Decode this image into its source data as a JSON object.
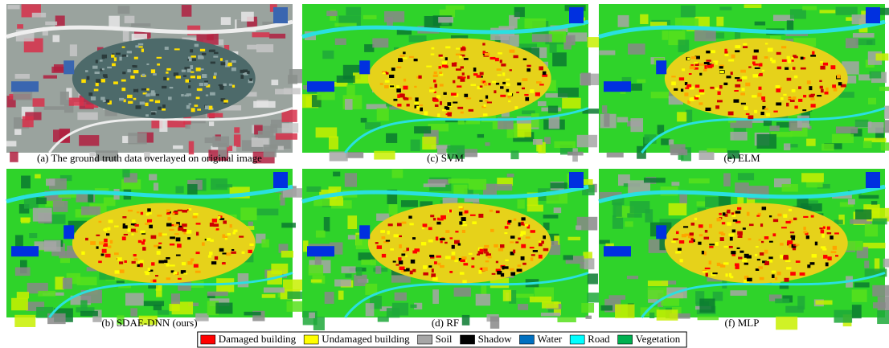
{
  "panels": [
    {
      "caption": "(a) The ground truth data overlayed on original image",
      "kind": "original"
    },
    {
      "caption": "(c) SVM",
      "kind": "map"
    },
    {
      "caption": "(e) ELM",
      "kind": "map"
    },
    {
      "caption": "(b) SDAE-DNN (ours)",
      "kind": "map"
    },
    {
      "caption": "(d) RF",
      "kind": "map"
    },
    {
      "caption": "(f) MLP",
      "kind": "map"
    }
  ],
  "legend": [
    {
      "label": "Damaged building",
      "color": "#ff0000"
    },
    {
      "label": "Undamaged building",
      "color": "#ffff00"
    },
    {
      "label": "Soil",
      "color": "#a6a6a6"
    },
    {
      "label": "Shadow",
      "color": "#000000"
    },
    {
      "label": "Water",
      "color": "#0070c0"
    },
    {
      "label": "Road",
      "color": "#00ffff"
    },
    {
      "label": "Vegetation",
      "color": "#00b050"
    }
  ]
}
